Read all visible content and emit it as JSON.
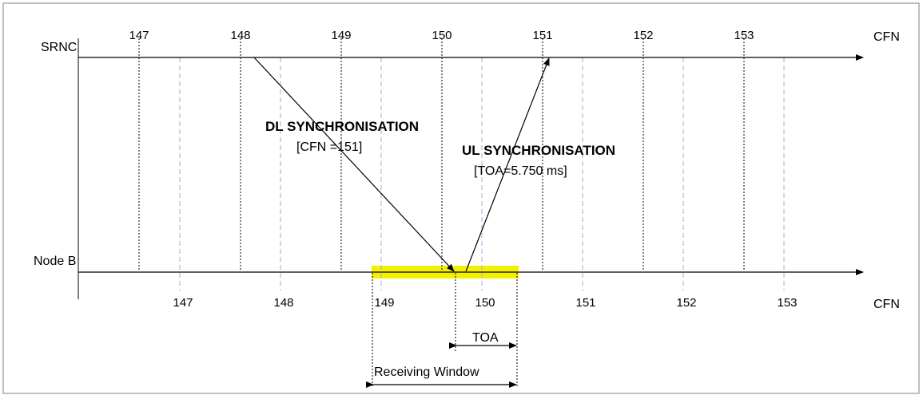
{
  "diagram": {
    "srnc_label": "SRNC",
    "nodeb_label": "Node B",
    "cfn_top": "CFN",
    "cfn_bottom": "CFN",
    "srnc_ticks": [
      "147",
      "148",
      "149",
      "150",
      "151",
      "152",
      "153"
    ],
    "nodeb_ticks": [
      "147",
      "148",
      "149",
      "150",
      "151",
      "152",
      "153"
    ],
    "dl_title": "DL SYNCHRONISATION",
    "dl_param": "[CFN =151]",
    "ul_title": "UL SYNCHRONISATION",
    "ul_param": "[TOA=5.750 ms]",
    "toa_label": "TOA",
    "window_label": "Receiving Window",
    "colors": {
      "line": "#000000",
      "dashed": "#c39bd3",
      "window_fill": "#f2f200",
      "border": "#808080"
    }
  }
}
